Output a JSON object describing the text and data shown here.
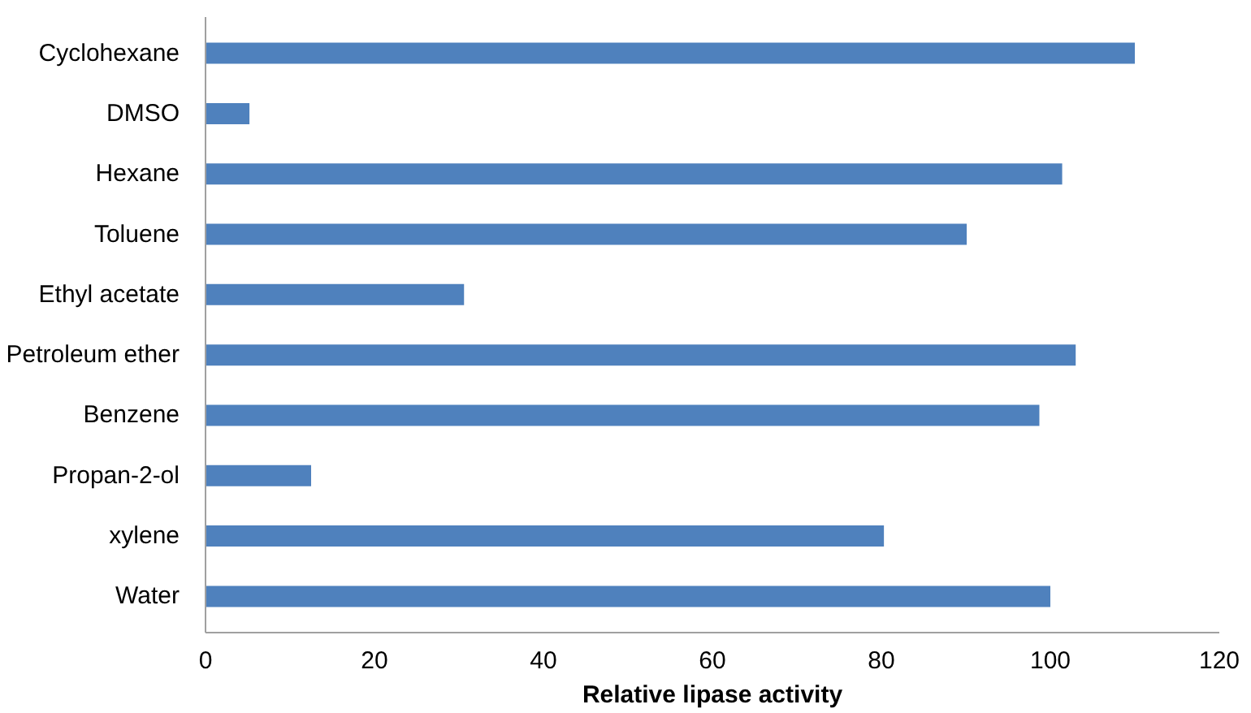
{
  "chart_data": {
    "type": "bar",
    "orientation": "horizontal",
    "xlabel": "Relative lipase activity",
    "categories": [
      "Cyclohexane",
      "DMSO",
      "Hexane",
      "Toluene",
      "Ethyl acetate",
      "Petroleum ether",
      "Benzene",
      "Propan-2-ol",
      "xylene",
      "Water"
    ],
    "values": [
      110,
      5.2,
      101.4,
      90.1,
      30.6,
      103,
      98.7,
      12.5,
      80.3,
      100
    ],
    "color": "#4f81bd",
    "xlim": [
      0,
      120
    ],
    "xticks": [
      0,
      20,
      40,
      60,
      80,
      100,
      120
    ],
    "grid": false
  }
}
